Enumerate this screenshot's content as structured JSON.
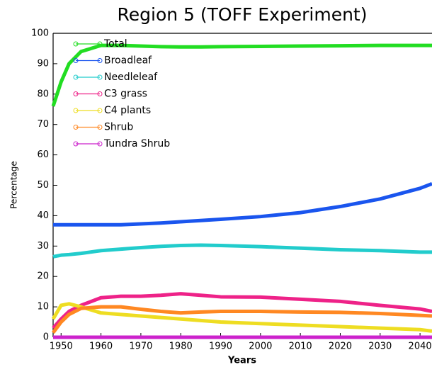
{
  "chart_data": {
    "type": "line",
    "title": "Region 5 (TOFF Experiment)",
    "xlabel": "Years",
    "ylabel": "Percentage",
    "x": [
      1948,
      1950,
      1952,
      1955,
      1960,
      1965,
      1970,
      1975,
      1980,
      1985,
      1990,
      2000,
      2010,
      2020,
      2030,
      2040,
      2043
    ],
    "series": [
      {
        "name": "Total",
        "color": "#22dd22",
        "values": [
          76,
          84,
          90,
          94,
          96,
          96,
          95.8,
          95.6,
          95.5,
          95.5,
          95.6,
          95.7,
          95.8,
          95.9,
          96,
          96,
          96
        ]
      },
      {
        "name": "Broadleaf",
        "color": "#1a55ee",
        "values": [
          37,
          37,
          37,
          37,
          37,
          37,
          37.3,
          37.6,
          38,
          38.4,
          38.8,
          39.7,
          41,
          43,
          45.5,
          49,
          50.5
        ]
      },
      {
        "name": "Needleleaf",
        "color": "#22cccc",
        "values": [
          26.5,
          27,
          27.2,
          27.6,
          28.5,
          29,
          29.5,
          29.9,
          30.2,
          30.3,
          30.2,
          29.8,
          29.3,
          28.8,
          28.5,
          28,
          28
        ]
      },
      {
        "name": "C3 grass",
        "color": "#ee2288",
        "values": [
          3,
          6,
          8.5,
          10.5,
          13,
          13.5,
          13.5,
          13.8,
          14.3,
          13.8,
          13.3,
          13.2,
          12.5,
          11.8,
          10.5,
          9.3,
          8.5
        ]
      },
      {
        "name": "C4 plants",
        "color": "#eedd22",
        "values": [
          6,
          10.5,
          11,
          10,
          8,
          7.5,
          7,
          6.5,
          6,
          5.5,
          5,
          4.5,
          4,
          3.5,
          3,
          2.5,
          2
        ]
      },
      {
        "name": "Shrub",
        "color": "#ff8822",
        "values": [
          1.5,
          5,
          7.5,
          9.5,
          10,
          10,
          9.2,
          8.5,
          8,
          8.3,
          8.5,
          8.5,
          8.3,
          8.2,
          7.8,
          7.2,
          7
        ]
      },
      {
        "name": "Tundra Shrub",
        "color": "#cc22cc",
        "values": [
          0,
          0,
          0,
          0,
          0,
          0,
          0,
          0,
          0,
          0,
          0,
          0,
          0,
          0,
          0,
          0,
          0
        ]
      }
    ],
    "xlim": [
      1948,
      2043
    ],
    "ylim": [
      0,
      100
    ],
    "xticks": [
      1950,
      1960,
      1970,
      1980,
      1990,
      2000,
      2010,
      2020,
      2030,
      2040
    ],
    "yticks": [
      0,
      10,
      20,
      30,
      40,
      50,
      60,
      70,
      80,
      90,
      100
    ],
    "legend": "upper-left"
  }
}
